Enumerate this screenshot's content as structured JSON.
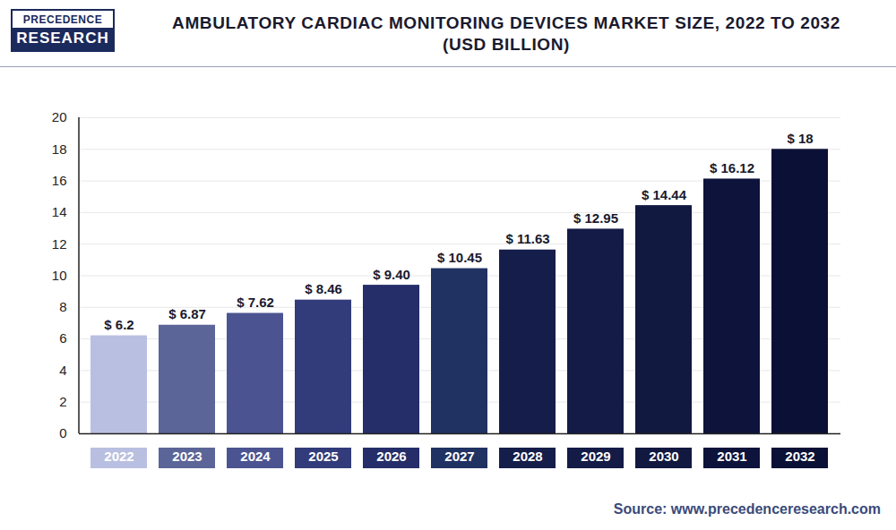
{
  "chart_data": {
    "type": "bar",
    "logo": [
      "PRECEDENCE",
      "RESEARCH"
    ],
    "title": "AMBULATORY CARDIAC MONITORING DEVICES MARKET SIZE, 2022 TO 2032",
    "subtitle": "(USD BILLION)",
    "source": "Source: www.precedenceresearch.com",
    "categories": [
      "2022",
      "2023",
      "2024",
      "2025",
      "2026",
      "2027",
      "2028",
      "2029",
      "2030",
      "2031",
      "2032"
    ],
    "values": [
      6.2,
      6.87,
      7.62,
      8.46,
      9.4,
      10.45,
      11.63,
      12.95,
      14.44,
      16.12,
      18
    ],
    "value_labels": [
      "$ 6.2",
      "$ 6.87",
      "$ 7.62",
      "$ 8.46",
      "$ 9.40",
      "$ 10.45",
      "$ 11.63",
      "$ 12.95",
      "$ 14.44",
      "$ 16.12",
      "$ 18"
    ],
    "colors": [
      "#b9bfe0",
      "#5b6597",
      "#4b5490",
      "#323c7a",
      "#252e68",
      "#203262",
      "#151d4a",
      "#131b46",
      "#111941",
      "#0d133a",
      "#0b1136"
    ],
    "ylim": [
      0,
      20
    ],
    "yticks": [
      0,
      2,
      4,
      6,
      8,
      10,
      12,
      14,
      16,
      18,
      20
    ],
    "grid": true,
    "data_labels": true
  }
}
